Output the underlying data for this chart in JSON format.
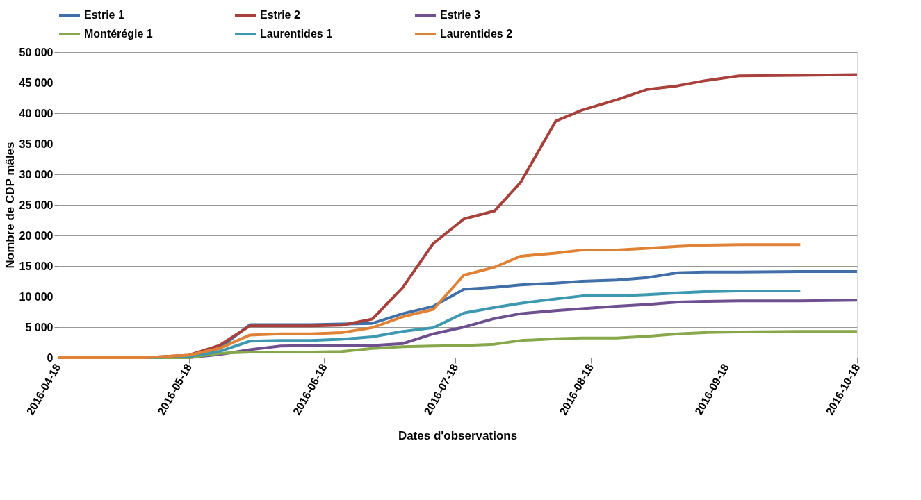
{
  "chart_data": {
    "type": "line",
    "xlabel": "Dates d'observations",
    "ylabel": "Nombre de CDP mâles",
    "x": [
      "2016-04-18",
      "2016-05-08",
      "2016-05-18",
      "2016-05-25",
      "2016-06-01",
      "2016-06-08",
      "2016-06-15",
      "2016-06-22",
      "2016-06-29",
      "2016-07-06",
      "2016-07-13",
      "2016-07-20",
      "2016-07-27",
      "2016-08-02",
      "2016-08-10",
      "2016-08-16",
      "2016-08-24",
      "2016-08-31",
      "2016-09-07",
      "2016-09-13",
      "2016-09-21",
      "2016-10-05",
      "2016-10-18"
    ],
    "series": [
      {
        "name": "Estrie 1",
        "color": "#4170a8",
        "values": [
          0,
          0,
          300,
          1500,
          5400,
          5400,
          5400,
          5500,
          5600,
          7200,
          8400,
          11200,
          11500,
          11900,
          12200,
          12500,
          12700,
          13100,
          13900,
          14000,
          14000,
          14100,
          14100
        ]
      },
      {
        "name": "Estrie 2",
        "color": "#a8403c",
        "values": [
          0,
          0,
          400,
          2000,
          5200,
          5200,
          5200,
          5300,
          6300,
          11500,
          18700,
          22700,
          24000,
          28700,
          38700,
          40500,
          42200,
          43900,
          44500,
          45300,
          46100,
          46200,
          46300
        ]
      },
      {
        "name": "Estrie 3",
        "color": "#6e5090",
        "values": [
          0,
          0,
          0,
          500,
          1300,
          1900,
          2000,
          2000,
          2000,
          2300,
          3900,
          5000,
          6400,
          7200,
          7700,
          8000,
          8400,
          8700,
          9100,
          9200,
          9300,
          9300,
          9400
        ]
      },
      {
        "name": "Montérégie 1",
        "color": "#86a84a",
        "values": [
          0,
          0,
          0,
          700,
          900,
          900,
          900,
          1000,
          1500,
          1800,
          1900,
          2000,
          2200,
          2800,
          3100,
          3200,
          3200,
          3500,
          3900,
          4100,
          4200,
          4300,
          4300
        ]
      },
      {
        "name": "Laurentides 1",
        "color": "#3d98b0",
        "values": [
          0,
          0,
          200,
          1000,
          2700,
          2800,
          2800,
          3000,
          3400,
          4300,
          4900,
          7300,
          8200,
          8900,
          9600,
          10100,
          10100,
          10300,
          10600,
          10800,
          10900,
          10900,
          null
        ]
      },
      {
        "name": "Laurentides 2",
        "color": "#e08236",
        "values": [
          0,
          0,
          400,
          1500,
          3700,
          3900,
          3900,
          4100,
          4900,
          6700,
          7900,
          13500,
          14800,
          16600,
          17100,
          17600,
          17600,
          17900,
          18200,
          18400,
          18500,
          18500,
          null
        ]
      }
    ],
    "xlim": [
      "2016-04-18",
      "2016-10-18"
    ],
    "xticks": [
      "2016-04-18",
      "2016-05-18",
      "2016-06-18",
      "2016-07-18",
      "2016-08-18",
      "2016-09-18",
      "2016-10-18"
    ],
    "ylim": [
      0,
      50000
    ],
    "yticks": [
      {
        "value": 0,
        "label": "0"
      },
      {
        "value": 5000,
        "label": "5 000"
      },
      {
        "value": 10000,
        "label": "10 000"
      },
      {
        "value": 15000,
        "label": "15 000"
      },
      {
        "value": 20000,
        "label": "20 000"
      },
      {
        "value": 25000,
        "label": "25 000"
      },
      {
        "value": 30000,
        "label": "30 000"
      },
      {
        "value": 35000,
        "label": "35 000"
      },
      {
        "value": 40000,
        "label": "40 000"
      },
      {
        "value": 45000,
        "label": "45 000"
      },
      {
        "value": 50000,
        "label": "50 000"
      }
    ],
    "grid": "y",
    "legend": "top",
    "marker": "none",
    "line_style": "solid"
  }
}
